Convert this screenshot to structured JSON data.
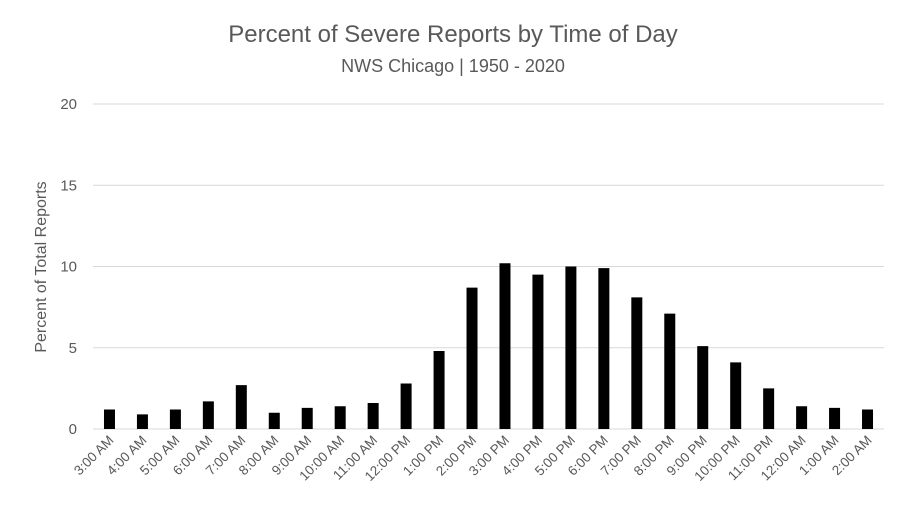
{
  "chart_data": {
    "type": "bar",
    "title": "Percent of Severe Reports by Time of Day",
    "subtitle": "NWS Chicago | 1950 - 2020",
    "xlabel": "",
    "ylabel": "Percent of Total Reports",
    "ylim": [
      0,
      20
    ],
    "yticks": [
      "0",
      "5",
      "10",
      "15",
      "20"
    ],
    "grid": true,
    "bar_color": "#000000",
    "categories": [
      "3:00 AM",
      "4:00 AM",
      "5:00 AM",
      "6:00 AM",
      "7:00 AM",
      "8:00 AM",
      "9:00 AM",
      "10:00 AM",
      "11:00 AM",
      "12:00 PM",
      "1:00 PM",
      "2:00 PM",
      "3:00 PM",
      "4:00 PM",
      "5:00 PM",
      "6:00 PM",
      "7:00 PM",
      "8:00 PM",
      "9:00 PM",
      "10:00 PM",
      "11:00 PM",
      "12:00 AM",
      "1:00 AM",
      "2:00 AM"
    ],
    "values": [
      1.2,
      0.9,
      1.2,
      1.7,
      2.7,
      1.0,
      1.3,
      1.4,
      1.6,
      2.8,
      4.8,
      8.7,
      10.2,
      9.5,
      10.0,
      9.9,
      8.1,
      7.1,
      5.1,
      4.1,
      2.5,
      1.4,
      1.3,
      1.2
    ]
  }
}
